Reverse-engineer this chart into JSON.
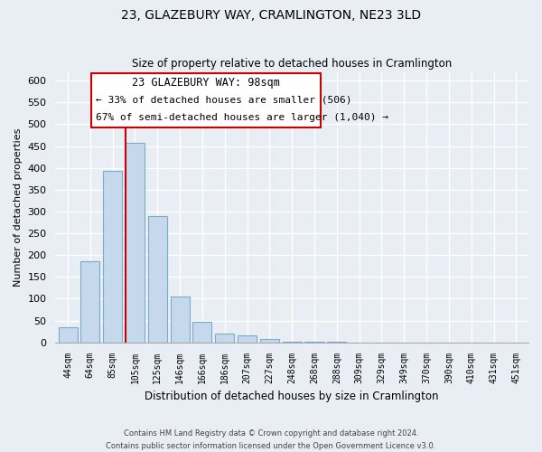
{
  "title": "23, GLAZEBURY WAY, CRAMLINGTON, NE23 3LD",
  "subtitle": "Size of property relative to detached houses in Cramlington",
  "xlabel": "Distribution of detached houses by size in Cramlington",
  "ylabel": "Number of detached properties",
  "bar_labels": [
    "44sqm",
    "64sqm",
    "85sqm",
    "105sqm",
    "125sqm",
    "146sqm",
    "166sqm",
    "186sqm",
    "207sqm",
    "227sqm",
    "248sqm",
    "268sqm",
    "288sqm",
    "309sqm",
    "329sqm",
    "349sqm",
    "370sqm",
    "390sqm",
    "410sqm",
    "431sqm",
    "451sqm"
  ],
  "bar_values": [
    35,
    185,
    393,
    458,
    289,
    105,
    48,
    21,
    15,
    8,
    2,
    1,
    1,
    0,
    0,
    0,
    0,
    0,
    0,
    0,
    0
  ],
  "bar_color": "#c5d8ec",
  "bar_edge_color": "#7aaec8",
  "ylim": [
    0,
    620
  ],
  "yticks": [
    0,
    50,
    100,
    150,
    200,
    250,
    300,
    350,
    400,
    450,
    500,
    550,
    600
  ],
  "property_line_color": "#cc0000",
  "annotation_title": "23 GLAZEBURY WAY: 98sqm",
  "annotation_line1": "← 33% of detached houses are smaller (506)",
  "annotation_line2": "67% of semi-detached houses are larger (1,040) →",
  "annotation_box_color": "#ffffff",
  "annotation_box_edge": "#cc0000",
  "footer_line1": "Contains HM Land Registry data © Crown copyright and database right 2024.",
  "footer_line2": "Contains public sector information licensed under the Open Government Licence v3.0.",
  "background_color": "#e8eef4",
  "grid_color": "#ffffff"
}
